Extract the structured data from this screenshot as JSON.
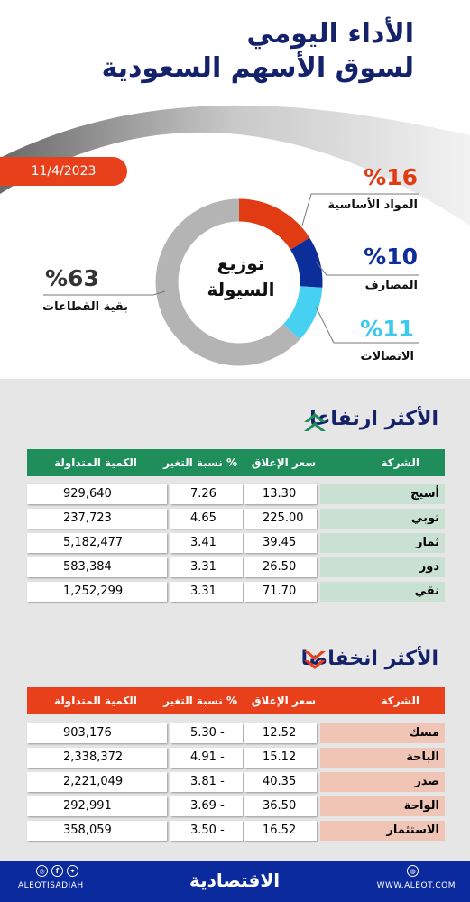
{
  "header": {
    "title_line1": "الأداء اليومي",
    "title_line2": "لسوق الأسهم السعودية",
    "date": "11/4/2023"
  },
  "chart_data": [
    {
      "type": "pie",
      "title": "توزيع السيولة",
      "title_line1": "توزيع",
      "title_line2": "السيولة",
      "slices": [
        {
          "label": "المواد الأساسية",
          "value": 16,
          "value_label": "%16",
          "color": "#e03b12"
        },
        {
          "label": "المصارف",
          "value": 10,
          "value_label": "%10",
          "color": "#0b2e9a"
        },
        {
          "label": "الاتصالات",
          "value": 11,
          "value_label": "%11",
          "color": "#46d0f2"
        },
        {
          "label": "بقية القطاعات",
          "value": 63,
          "value_label": "%63",
          "color": "#b4b4b4"
        }
      ]
    },
    {
      "type": "table",
      "title": "الأكثر ارتفاعا",
      "columns": [
        "الشركة",
        "سعر الإغلاق",
        "نسبة التغير %",
        "الكمية المتداولة"
      ],
      "rows": [
        {
          "name": "أسيج",
          "close": "13.30",
          "change": "7.26",
          "qty": "929,640"
        },
        {
          "name": "توبي",
          "close": "225.00",
          "change": "4.65",
          "qty": "237,723"
        },
        {
          "name": "ثمار",
          "close": "39.45",
          "change": "3.41",
          "qty": "5,182,477"
        },
        {
          "name": "دور",
          "close": "26.50",
          "change": "3.31",
          "qty": "583,384"
        },
        {
          "name": "نقي",
          "close": "71.70",
          "change": "3.31",
          "qty": "1,252,299"
        }
      ]
    },
    {
      "type": "table",
      "title": "الأكثر انخفاضا",
      "columns": [
        "الشركة",
        "سعر الإغلاق",
        "نسبة التغير %",
        "الكمية المتداولة"
      ],
      "rows": [
        {
          "name": "مسك",
          "close": "12.52",
          "change": "5.30 -",
          "qty": "903,176"
        },
        {
          "name": "الباحة",
          "close": "15.12",
          "change": "4.91 -",
          "qty": "2,338,372"
        },
        {
          "name": "صدر",
          "close": "40.35",
          "change": "3.81 -",
          "qty": "2,221,049"
        },
        {
          "name": "الواحة",
          "close": "36.50",
          "change": "3.69 -",
          "qty": "292,991"
        },
        {
          "name": "الاستثمار",
          "close": "16.52",
          "change": "3.50 -",
          "qty": "358,059"
        }
      ]
    }
  ],
  "theme": {
    "navy": "#14226b",
    "green_header": "#1f8e5a",
    "orange_header": "#e8401a",
    "up_arrow": "#1f8e5a",
    "down_arrow": "#e8401a"
  },
  "footer": {
    "brand": "الاقتصادية",
    "handle": "ALEQTISADIAH",
    "website": "WWW.ALEQT.COM",
    "icons": [
      "instagram-icon",
      "facebook-icon",
      "twitter-icon",
      "globe-icon"
    ]
  }
}
